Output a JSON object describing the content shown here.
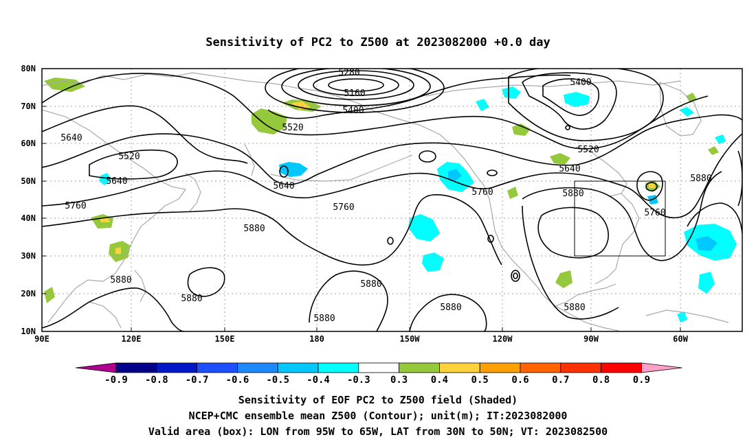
{
  "title": "Sensitivity of PC2 to Z500 at 2023082000 +0.0 day",
  "lat_labels": [
    "80N",
    "70N",
    "60N",
    "50N",
    "40N",
    "30N",
    "20N",
    "10N"
  ],
  "lon_labels": [
    "90E",
    "120E",
    "150E",
    "180",
    "150W",
    "120W",
    "90W",
    "60W"
  ],
  "contour_labels": {
    "c5280": "5280",
    "c5160": "5160",
    "c5400a": "5400",
    "c5400b": "5400",
    "c5520a": "5520",
    "c5520b": "5520",
    "c5520c": "5520",
    "c5640a": "5640",
    "c5640b": "5640",
    "c5640c": "5640",
    "c5640d": "5640",
    "c5760a": "5760",
    "c5760b": "5760",
    "c5760c": "5760",
    "c5760d": "5760",
    "c5880a": "5880",
    "c5880b": "5880",
    "c5880c": "5880",
    "c5880d": "5880",
    "c5880e": "5880",
    "c5880f": "5880",
    "c5880g": "5880",
    "c5880h": "5880",
    "c5880i": "5880"
  },
  "colorbar": {
    "labels": [
      "-0.9",
      "-0.8",
      "-0.7",
      "-0.6",
      "-0.5",
      "-0.4",
      "-0.3",
      "0.3",
      "0.4",
      "0.5",
      "0.6",
      "0.7",
      "0.8",
      "0.9"
    ],
    "colors": [
      "#b0008e",
      "#00008a",
      "#0018c8",
      "#1e50ff",
      "#1e88ff",
      "#00c8ff",
      "#00ffff",
      "#ffffff",
      "#96c83c",
      "#ffd23c",
      "#ffa000",
      "#ff6400",
      "#ff3200",
      "#ff0000",
      "#ffa0c8"
    ]
  },
  "captions": {
    "line1": "Sensitivity of EOF PC2 to Z500 field (Shaded)",
    "line2": "NCEP+CMC ensemble mean Z500 (Contour); unit(m); IT:2023082000",
    "line3": "Valid area (box): LON from 95W to 65W, LAT from 30N to 50N; VT: 2023082500"
  },
  "colors": {
    "contour": "#000000",
    "coast": "#a8a8a8",
    "grid": "#a0a0a0"
  }
}
